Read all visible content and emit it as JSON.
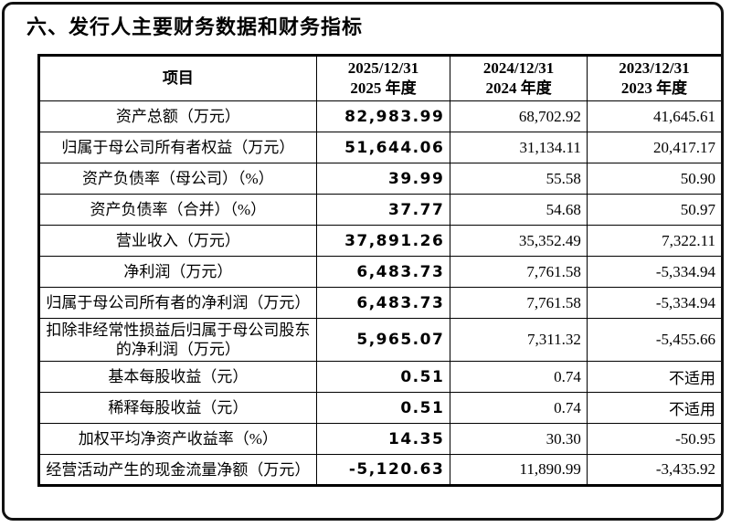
{
  "page": {
    "section_title": "六、发行人主要财务数据和财务指标"
  },
  "table": {
    "item_header": "项目",
    "columns": [
      {
        "date": "2025/12/31",
        "period": "2025 年度"
      },
      {
        "date": "2024/12/31",
        "period": "2024 年度"
      },
      {
        "date": "2023/12/31",
        "period": "2023 年度"
      }
    ],
    "rows": [
      {
        "item": "资产总额（万元）",
        "values": [
          "82,983.99",
          "68,702.92",
          "41,645.61"
        ]
      },
      {
        "item": "归属于母公司所有者权益（万元）",
        "values": [
          "51,644.06",
          "31,134.11",
          "20,417.17"
        ]
      },
      {
        "item": "资产负债率（母公司）（%）",
        "values": [
          "39.99",
          "55.58",
          "50.90"
        ]
      },
      {
        "item": "资产负债率（合并）（%）",
        "values": [
          "37.77",
          "54.68",
          "50.97"
        ]
      },
      {
        "item": "营业收入（万元）",
        "values": [
          "37,891.26",
          "35,352.49",
          "7,322.11"
        ]
      },
      {
        "item": "净利润（万元）",
        "values": [
          "6,483.73",
          "7,761.58",
          "-5,334.94"
        ]
      },
      {
        "item": "归属于母公司所有者的净利润（万元）",
        "values": [
          "6,483.73",
          "7,761.58",
          "-5,334.94"
        ]
      },
      {
        "item": "扣除非经常性损益后归属于母公司股东的净利润（万元）",
        "values": [
          "5,965.07",
          "7,311.32",
          "-5,455.66"
        ]
      },
      {
        "item": "基本每股收益（元）",
        "values": [
          "0.51",
          "0.74",
          "不适用"
        ]
      },
      {
        "item": "稀释每股收益（元）",
        "values": [
          "0.51",
          "0.74",
          "不适用"
        ]
      },
      {
        "item": "加权平均净资产收益率（%）",
        "values": [
          "14.35",
          "30.30",
          "-50.95"
        ]
      },
      {
        "item": "经营活动产生的现金流量净额（万元）",
        "values": [
          "-5,120.63",
          "11,890.99",
          "-3,435.92"
        ]
      }
    ]
  }
}
